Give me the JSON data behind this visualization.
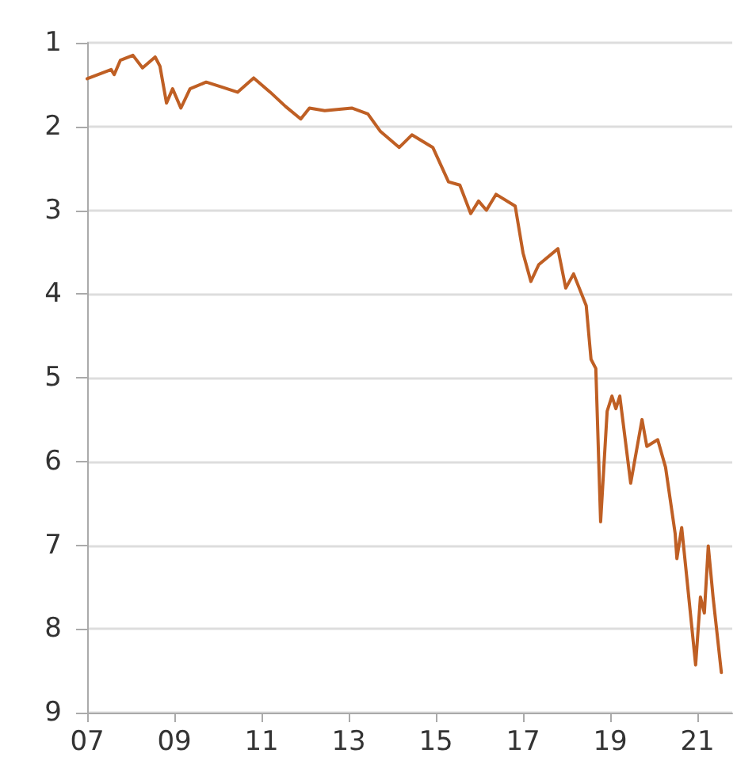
{
  "chart_data": {
    "type": "line",
    "x": [
      2007.0,
      2007.55,
      2007.62,
      2007.76,
      2008.05,
      2008.27,
      2008.56,
      2008.67,
      2008.82,
      2008.96,
      2009.15,
      2009.36,
      2009.73,
      2010.1,
      2010.45,
      2010.82,
      2011.2,
      2011.55,
      2011.9,
      2012.1,
      2012.45,
      2013.07,
      2013.44,
      2013.73,
      2014.16,
      2014.45,
      2014.93,
      2015.29,
      2015.55,
      2015.8,
      2015.98,
      2016.16,
      2016.38,
      2016.82,
      2017.0,
      2017.18,
      2017.36,
      2017.8,
      2017.98,
      2018.16,
      2018.45,
      2018.56,
      2018.67,
      2018.78,
      2018.93,
      2019.04,
      2019.13,
      2019.22,
      2019.47,
      2019.73,
      2019.84,
      2020.09,
      2020.27,
      2020.49,
      2020.53,
      2020.64,
      2020.75,
      2020.96,
      2021.07,
      2021.16,
      2021.25,
      2021.36,
      2021.55
    ],
    "series": [
      {
        "color": "#bf5f24",
        "values": [
          1.43,
          1.32,
          1.38,
          1.21,
          1.15,
          1.3,
          1.17,
          1.28,
          1.72,
          1.55,
          1.78,
          1.55,
          1.47,
          1.53,
          1.59,
          1.42,
          1.59,
          1.76,
          1.91,
          1.78,
          1.81,
          1.78,
          1.85,
          2.06,
          2.25,
          2.1,
          2.25,
          2.66,
          2.7,
          3.04,
          2.89,
          3.0,
          2.81,
          2.95,
          3.51,
          3.85,
          3.65,
          3.46,
          3.93,
          3.76,
          4.14,
          4.78,
          4.89,
          6.72,
          5.4,
          5.22,
          5.37,
          5.22,
          6.26,
          5.5,
          5.82,
          5.74,
          6.07,
          6.86,
          7.16,
          6.79,
          7.35,
          8.43,
          7.62,
          7.81,
          7.01,
          7.62,
          8.52
        ]
      }
    ],
    "xlim": [
      2007,
      2021.8
    ],
    "xticks": [
      {
        "value": 2007,
        "label": "07"
      },
      {
        "value": 2009,
        "label": "09"
      },
      {
        "value": 2011,
        "label": "11"
      },
      {
        "value": 2013,
        "label": "13"
      },
      {
        "value": 2015,
        "label": "15"
      },
      {
        "value": 2017,
        "label": "17"
      },
      {
        "value": 2019,
        "label": "19"
      },
      {
        "value": 2021,
        "label": "21"
      }
    ],
    "ylim": [
      9,
      1
    ],
    "yticks": [
      1,
      2,
      3,
      4,
      5,
      6,
      7,
      8,
      9
    ],
    "grid": "y",
    "marker": "none",
    "line_style": "solid"
  }
}
